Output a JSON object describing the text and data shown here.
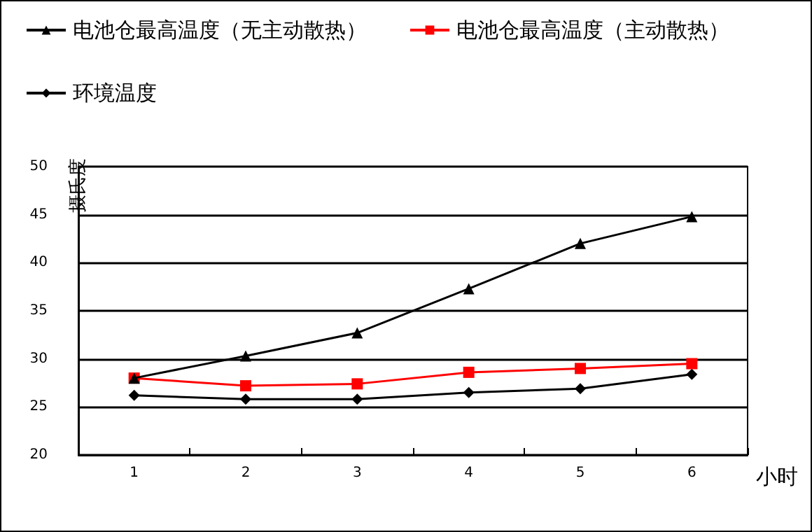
{
  "chart_data": {
    "type": "line",
    "xlabel": "小时",
    "ylabel": "摄氏度",
    "categories": [
      "1",
      "2",
      "3",
      "4",
      "5",
      "6"
    ],
    "series": [
      {
        "name": "电池仓最高温度（无主动散热）",
        "color": "#000000",
        "marker": "triangle",
        "values": [
          28.0,
          30.3,
          32.7,
          37.3,
          42.0,
          44.8
        ]
      },
      {
        "name": "电池仓最高温度（主动散热）",
        "color": "#ff0000",
        "marker": "square",
        "values": [
          28.0,
          27.2,
          27.4,
          28.6,
          29.0,
          29.5
        ]
      },
      {
        "name": "环境温度",
        "color": "#000000",
        "marker": "diamond",
        "values": [
          26.2,
          25.8,
          25.8,
          26.5,
          26.9,
          28.4
        ]
      }
    ],
    "ylim": [
      20,
      50
    ],
    "yticks": [
      20,
      25,
      30,
      35,
      40,
      45,
      50
    ],
    "grid": "y",
    "legend": "top left",
    "line_style": "solid"
  }
}
